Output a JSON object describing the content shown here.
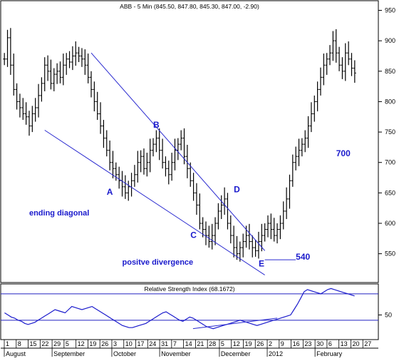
{
  "chart_data": [
    {
      "type": "ohlc",
      "title": "ABB - 5 Min (845.50, 847.80, 845.30, 847.00, -2.90)",
      "ylim": [
        505,
        960
      ],
      "yticks": [
        550,
        600,
        650,
        700,
        750,
        800,
        850,
        900,
        950
      ],
      "x_day_labels": [
        "1",
        "8",
        "15",
        "22",
        "29",
        "5",
        "12",
        "19",
        "26",
        "3",
        "10",
        "17",
        "24",
        "31",
        "7",
        "14",
        "21",
        "28",
        "5",
        "12",
        "19",
        "26",
        "2",
        "9",
        "16",
        "23",
        "30",
        "6",
        "13",
        "20",
        "27"
      ],
      "x_month_labels": [
        "August",
        "September",
        "October",
        "November",
        "December",
        "2012",
        "February"
      ],
      "closes": [
        870,
        905,
        860,
        820,
        800,
        790,
        780,
        775,
        760,
        780,
        790,
        810,
        830,
        860,
        850,
        830,
        845,
        850,
        840,
        860,
        870,
        865,
        875,
        880,
        875,
        870,
        860,
        840,
        820,
        800,
        780,
        760,
        740,
        720,
        700,
        690,
        680,
        670,
        660,
        650,
        660,
        670,
        680,
        700,
        710,
        690,
        700,
        720,
        730,
        740,
        720,
        700,
        690,
        680,
        700,
        720,
        730,
        740,
        710,
        690,
        670,
        650,
        630,
        600,
        590,
        580,
        570,
        580,
        600,
        620,
        630,
        640,
        600,
        580,
        560,
        550,
        560,
        570,
        580,
        570,
        560,
        555,
        570,
        580,
        590,
        600,
        590,
        580,
        590,
        600,
        620,
        640,
        670,
        700,
        710,
        720,
        730,
        740,
        760,
        780,
        800,
        820,
        840,
        860,
        870,
        880,
        900,
        880,
        860,
        850,
        880,
        870,
        855,
        847
      ],
      "annotations": [
        {
          "label": "A",
          "x": 33,
          "y": 647
        },
        {
          "label": "B",
          "x": 48,
          "y": 757
        },
        {
          "label": "C",
          "x": 60,
          "y": 576
        },
        {
          "label": "D",
          "x": 74,
          "y": 651
        },
        {
          "label": "E",
          "x": 82,
          "y": 529
        },
        {
          "label": "ending diagonal",
          "x": 8,
          "y": 613
        },
        {
          "label": "positve divergence",
          "x": 38,
          "y": 532
        },
        {
          "label": "700",
          "x": 107,
          "y": 710
        },
        {
          "label": "540",
          "x": 94,
          "y": 540
        }
      ],
      "trendlines": [
        {
          "x": [
            28,
            84
          ],
          "y": [
            880,
            555
          ]
        },
        {
          "x": [
            13,
            84
          ],
          "y": [
            753,
            515
          ]
        },
        {
          "x": [
            84,
            94
          ],
          "y": [
            540,
            540
          ]
        }
      ]
    },
    {
      "type": "line",
      "title": "Relative Strength Index (68.1672)",
      "ylim": [
        28,
        78
      ],
      "yticks": [
        50
      ],
      "hlines": [
        70,
        45
      ],
      "values": [
        52,
        50,
        48,
        47,
        45,
        44,
        42,
        41,
        42,
        43,
        45,
        47,
        49,
        51,
        53,
        55,
        54,
        53,
        52,
        55,
        58,
        57,
        56,
        55,
        56,
        57,
        58,
        56,
        54,
        52,
        50,
        48,
        46,
        44,
        42,
        40,
        39,
        38,
        38,
        39,
        40,
        41,
        42,
        44,
        46,
        48,
        50,
        52,
        53,
        51,
        49,
        47,
        45,
        44,
        46,
        48,
        47,
        45,
        43,
        41,
        39,
        38,
        37,
        38,
        39,
        40,
        41,
        42,
        43,
        44,
        45,
        44,
        43,
        42,
        41,
        40,
        41,
        42,
        43,
        44,
        45,
        46,
        47,
        48,
        49,
        50,
        55,
        60,
        66,
        72,
        74,
        73,
        72,
        71,
        70,
        72,
        74,
        75,
        74,
        73,
        72,
        71,
        70,
        69,
        68
      ]
    }
  ]
}
